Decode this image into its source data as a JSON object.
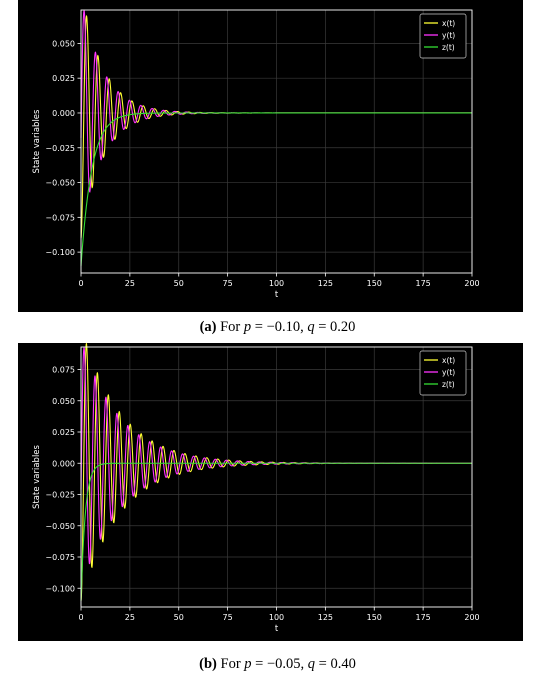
{
  "chart_data": [
    {
      "type": "line",
      "caption": {
        "label": "(a)",
        "text": "For",
        "p_var": "p",
        "p_val": "= −0.10,",
        "q_var": "q",
        "q_val": "= 0.20"
      },
      "xlabel": "t",
      "ylabel": "State variables",
      "xlim": [
        0,
        200
      ],
      "ylim": [
        -0.115,
        0.074
      ],
      "xticks": [
        0,
        25,
        50,
        75,
        100,
        125,
        150,
        175,
        200
      ],
      "yticks": [
        -0.1,
        -0.075,
        -0.05,
        -0.025,
        0.0,
        0.025,
        0.05
      ],
      "ytick_labels": [
        "−0.100",
        "−0.075",
        "−0.050",
        "−0.025",
        "0.000",
        "0.025",
        "0.050"
      ],
      "grid": true,
      "legend_position": "top-right",
      "series": [
        {
          "name": "x(t)",
          "color": "#ffff33",
          "amplitude": 0.09,
          "decay": 0.09,
          "period": 5.8,
          "phase": 3.14
        },
        {
          "name": "y(t)",
          "color": "#ff33ff",
          "amplitude": 0.085,
          "decay": 0.09,
          "period": 5.8,
          "phase": 4.5
        },
        {
          "name": "z(t)",
          "color": "#33dd33",
          "start": -0.11,
          "decay": 0.18
        }
      ]
    },
    {
      "type": "line",
      "caption": {
        "label": "(b)",
        "text": "For",
        "p_var": "p",
        "p_val": "= −0.05,",
        "q_var": "q",
        "q_val": "= 0.40"
      },
      "xlabel": "t",
      "ylabel": "State variables",
      "xlim": [
        0,
        200
      ],
      "ylim": [
        -0.115,
        0.093
      ],
      "xticks": [
        0,
        25,
        50,
        75,
        100,
        125,
        150,
        175,
        200
      ],
      "yticks": [
        -0.1,
        -0.075,
        -0.05,
        -0.025,
        0.0,
        0.025,
        0.05,
        0.075
      ],
      "ytick_labels": [
        "−0.100",
        "−0.075",
        "−0.050",
        "−0.025",
        "0.000",
        "0.025",
        "0.050",
        "0.075"
      ],
      "grid": true,
      "legend_position": "top-right",
      "series": [
        {
          "name": "x(t)",
          "color": "#ffff33",
          "amplitude": 0.11,
          "decay": 0.05,
          "period": 5.6,
          "phase": 3.14
        },
        {
          "name": "y(t)",
          "color": "#ff33ff",
          "amplitude": 0.1,
          "decay": 0.05,
          "period": 5.6,
          "phase": 4.5
        },
        {
          "name": "z(t)",
          "color": "#33dd33",
          "start": -0.11,
          "decay": 0.45
        }
      ]
    }
  ]
}
